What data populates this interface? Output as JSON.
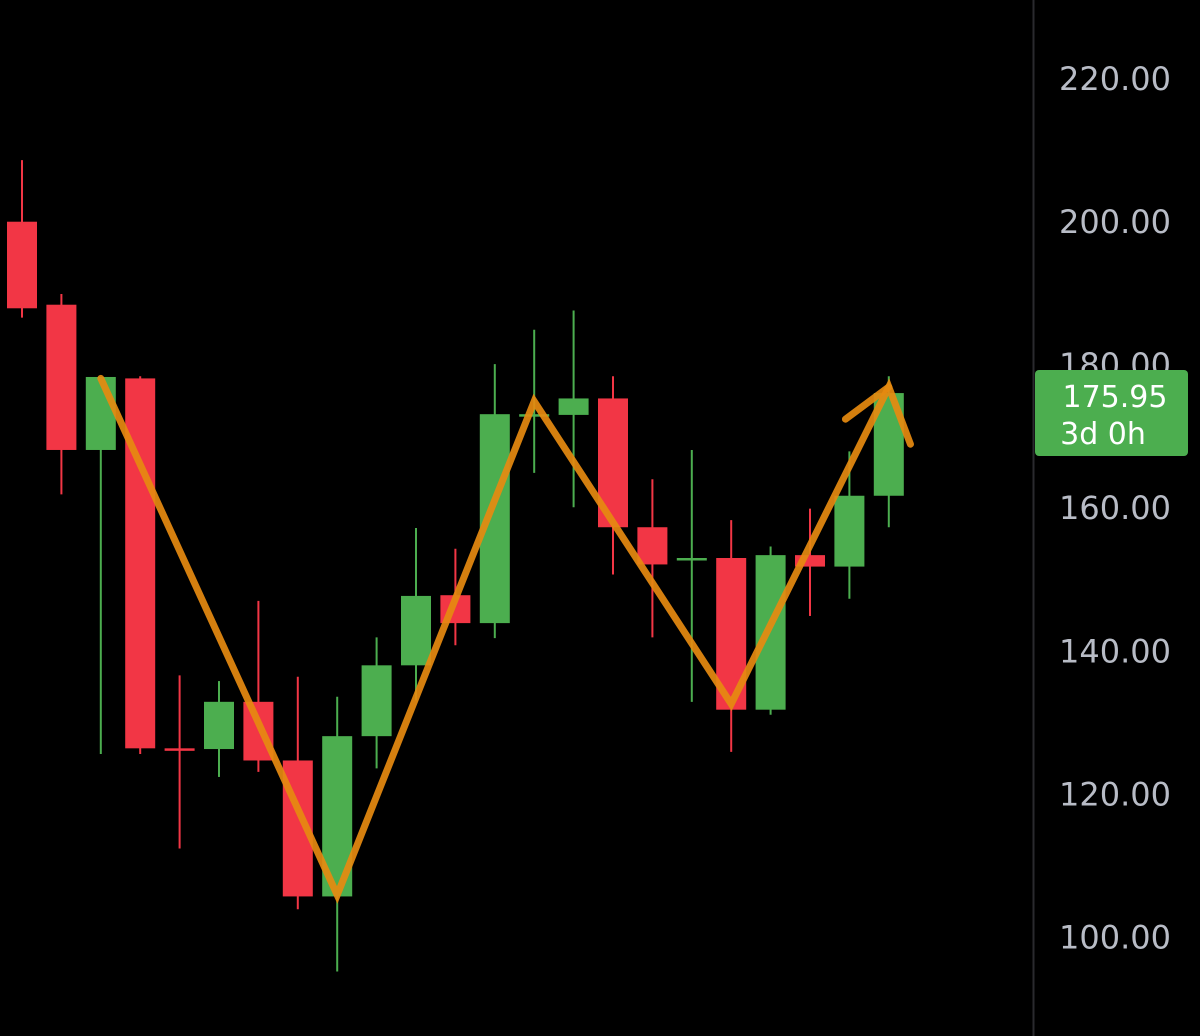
{
  "chart_data": {
    "type": "candlestick",
    "y_axis": {
      "ticks": [
        "100.00",
        "120.00",
        "140.00",
        "160.00",
        "180.00",
        "200.00",
        "220.00"
      ],
      "tick_values": [
        100,
        120,
        140,
        160,
        180,
        200,
        220
      ],
      "range": [
        88,
        231
      ]
    },
    "candles": [
      {
        "open": 199.9,
        "high": 208.5,
        "low": 186.5,
        "close": 187.8
      },
      {
        "open": 188.3,
        "high": 189.8,
        "low": 161.8,
        "close": 168.0
      },
      {
        "open": 168.0,
        "high": 178.2,
        "low": 125.5,
        "close": 178.2
      },
      {
        "open": 178.0,
        "high": 178.3,
        "low": 125.5,
        "close": 126.3
      },
      {
        "open": 126.3,
        "high": 136.5,
        "low": 112.3,
        "close": 126.2
      },
      {
        "open": 126.2,
        "high": 135.7,
        "low": 122.3,
        "close": 132.8
      },
      {
        "open": 132.8,
        "high": 146.9,
        "low": 123.0,
        "close": 124.6
      },
      {
        "open": 124.6,
        "high": 136.3,
        "low": 103.8,
        "close": 105.6
      },
      {
        "open": 105.6,
        "high": 133.5,
        "low": 95.1,
        "close": 128.0
      },
      {
        "open": 128.0,
        "high": 141.8,
        "low": 123.5,
        "close": 137.9
      },
      {
        "open": 137.9,
        "high": 157.1,
        "low": 133.0,
        "close": 147.6
      },
      {
        "open": 147.7,
        "high": 154.2,
        "low": 140.7,
        "close": 143.8
      },
      {
        "open": 143.8,
        "high": 180.0,
        "low": 141.7,
        "close": 173.0
      },
      {
        "open": 173.0,
        "high": 184.8,
        "low": 164.8,
        "close": 173.0
      },
      {
        "open": 172.9,
        "high": 187.5,
        "low": 160.0,
        "close": 175.2
      },
      {
        "open": 175.2,
        "high": 178.3,
        "low": 150.6,
        "close": 157.2
      },
      {
        "open": 157.2,
        "high": 163.9,
        "low": 141.8,
        "close": 152.0
      },
      {
        "open": 152.9,
        "high": 168.0,
        "low": 132.8,
        "close": 152.9
      },
      {
        "open": 152.9,
        "high": 158.2,
        "low": 125.8,
        "close": 131.7
      },
      {
        "open": 131.7,
        "high": 154.5,
        "low": 131.0,
        "close": 153.3
      },
      {
        "open": 153.3,
        "high": 159.8,
        "low": 144.8,
        "close": 151.7
      },
      {
        "open": 151.7,
        "high": 167.8,
        "low": 147.2,
        "close": 161.6
      },
      {
        "open": 161.6,
        "high": 178.3,
        "low": 157.2,
        "close": 175.95
      }
    ],
    "annotation": {
      "type": "zigzag",
      "points": [
        [
          2,
          178.0
        ],
        [
          8,
          105.8
        ],
        [
          13,
          174.8
        ],
        [
          18,
          132.5
        ],
        [
          22,
          176.8
        ],
        [
          22.55,
          168.8
        ]
      ],
      "head_start": [
        20.9,
        172.3
      ]
    },
    "price_tag": {
      "price": "175.95",
      "countdown": "3d 0h"
    },
    "colors": {
      "up": "#4cae4f",
      "down": "#f23645",
      "zigzag": "#e68a10",
      "tag_bg": "#4cae4f",
      "axis_text": "#b8bcc6",
      "divider": "#2a2a2e",
      "background": "#000000"
    }
  }
}
